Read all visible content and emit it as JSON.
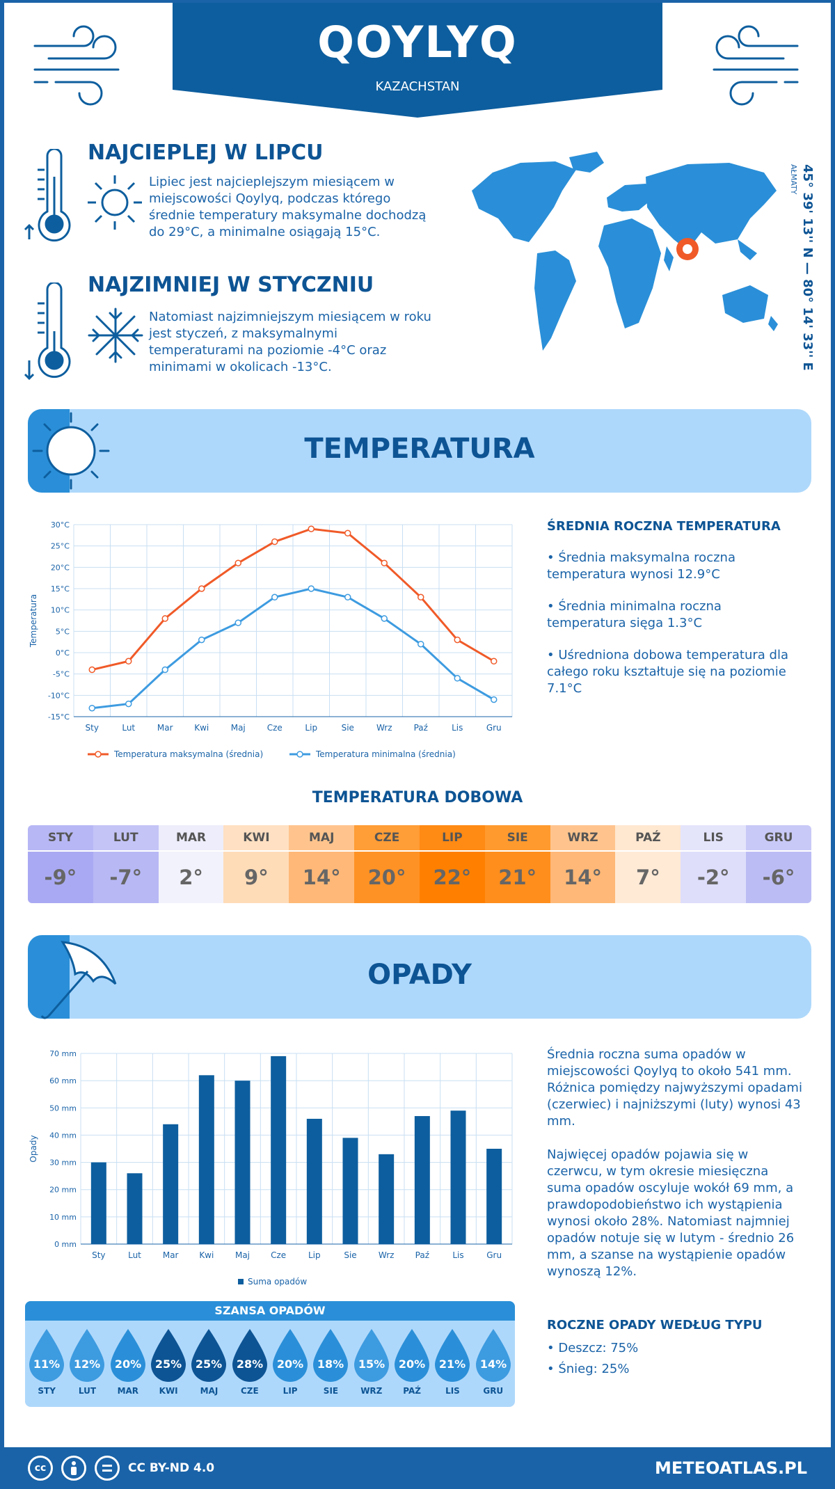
{
  "header": {
    "city": "QOYLYQ",
    "country": "KAZACHSTAN"
  },
  "hottest": {
    "title": "NAJCIEPLEJ W LIPCU",
    "text": "Lipiec jest najcieplejszym miesiącem w miejscowości Qoylyq, podczas którego średnie temperatury maksymalne dochodzą do 29°C, a minimalne osiągają 15°C."
  },
  "coldest": {
    "title": "NAJZIMNIEJ W STYCZNIU",
    "text": "Natomiast najzimniejszym miesiącem w roku jest styczeń, z maksymalnymi temperaturami na poziomie -4°C oraz minimami w okolicach -13°C."
  },
  "location": {
    "coords": "45° 39' 13'' N — 80° 14' 33'' E",
    "region": "AŁMATY"
  },
  "temperature": {
    "section_title": "TEMPERATURA",
    "summary_title": "ŚREDNIA ROCZNA TEMPERATURA",
    "bullets": [
      "• Średnia maksymalna roczna temperatura wynosi 12.9°C",
      "• Średnia minimalna roczna temperatura sięga 1.3°C",
      "• Uśredniona dobowa temperatura dla całego roku kształtuje się na poziomie 7.1°C"
    ]
  },
  "daily": {
    "title": "TEMPERATURA DOBOWA",
    "months": [
      "STY",
      "LUT",
      "MAR",
      "KWI",
      "MAJ",
      "CZE",
      "LIP",
      "SIE",
      "WRZ",
      "PAŹ",
      "LIS",
      "GRU"
    ],
    "values": [
      "-9°",
      "-7°",
      "2°",
      "9°",
      "14°",
      "20°",
      "22°",
      "21°",
      "14°",
      "7°",
      "-2°",
      "-6°"
    ],
    "head_colors": [
      "#b7b7f5",
      "#c4c4f7",
      "#ededfb",
      "#ffe0c2",
      "#ffc48d",
      "#ff9d36",
      "#ff8a14",
      "#ff9a2e",
      "#ffc48d",
      "#ffe7d0",
      "#e4e4fb",
      "#c9c9f7"
    ],
    "value_colors": [
      "#a9a9f3",
      "#b8b8f5",
      "#f2f2fc",
      "#ffdcb8",
      "#ffb877",
      "#ff9225",
      "#ff8000",
      "#ff8e1c",
      "#ffb877",
      "#ffead6",
      "#dedefb",
      "#bcbcf5"
    ]
  },
  "precip": {
    "section_title": "OPADY",
    "text1": "Średnia roczna suma opadów w miejscowości Qoylyq to około 541 mm. Różnica pomiędzy najwyższymi opadami (czerwiec) i najniższymi (luty) wynosi 43 mm.",
    "text2": "Najwięcej opadów pojawia się w czerwcu, w tym okresie miesięczna suma opadów oscyluje wokół 69 mm, a prawdopodobieństwo ich wystąpienia wynosi około 28%. Natomiast najmniej opadów notuje się w lutym - średnio 26 mm, a szanse na wystąpienie opadów wynoszą 12%.",
    "type_title": "ROCZNE OPADY WEDŁUG TYPU",
    "types": [
      "• Deszcz: 75%",
      "• Śnieg: 25%"
    ]
  },
  "chance": {
    "title": "SZANSA OPADÓW",
    "months": [
      "STY",
      "LUT",
      "MAR",
      "KWI",
      "MAJ",
      "CZE",
      "LIP",
      "SIE",
      "WRZ",
      "PAŹ",
      "LIS",
      "GRU"
    ],
    "values": [
      "11%",
      "12%",
      "20%",
      "25%",
      "25%",
      "28%",
      "20%",
      "18%",
      "15%",
      "20%",
      "21%",
      "14%"
    ],
    "colors": [
      "#3d9be0",
      "#3d9be0",
      "#2a8fd8",
      "#0d5494",
      "#0d5494",
      "#0d5494",
      "#2a8fd8",
      "#2a8fd8",
      "#3d9be0",
      "#2a8fd8",
      "#2a8fd8",
      "#3d9be0"
    ]
  },
  "chart_data": [
    {
      "type": "line",
      "categories": [
        "Sty",
        "Lut",
        "Mar",
        "Kwi",
        "Maj",
        "Cze",
        "Lip",
        "Sie",
        "Wrz",
        "Paź",
        "Lis",
        "Gru"
      ],
      "series": [
        {
          "name": "Temperatura maksymalna (średnia)",
          "values": [
            -4,
            -2,
            8,
            15,
            21,
            26,
            29,
            28,
            21,
            13,
            3,
            -2
          ],
          "color": "#f05a28"
        },
        {
          "name": "Temperatura minimalna (średnia)",
          "values": [
            -13,
            -12,
            -4,
            3,
            7,
            13,
            15,
            13,
            8,
            2,
            -6,
            -11
          ],
          "color": "#3d9be0"
        }
      ],
      "ylabel": "Temperatura",
      "ylim": [
        -15,
        30
      ],
      "yticks": [
        "-15°C",
        "-10°C",
        "-5°C",
        "0°C",
        "5°C",
        "10°C",
        "15°C",
        "20°C",
        "25°C",
        "30°C"
      ],
      "grid": true,
      "legend": "bottom"
    },
    {
      "type": "bar",
      "categories": [
        "Sty",
        "Lut",
        "Mar",
        "Kwi",
        "Maj",
        "Cze",
        "Lip",
        "Sie",
        "Wrz",
        "Paź",
        "Lis",
        "Gru"
      ],
      "series": [
        {
          "name": "Suma opadów",
          "values": [
            30,
            26,
            44,
            62,
            60,
            69,
            46,
            39,
            33,
            47,
            49,
            35
          ],
          "color": "#0d5e9e"
        }
      ],
      "ylabel": "Opady",
      "ylim": [
        0,
        70
      ],
      "yticks": [
        "0 mm",
        "10 mm",
        "20 mm",
        "30 mm",
        "40 mm",
        "50 mm",
        "60 mm",
        "70 mm"
      ],
      "grid": true,
      "legend": "bottom"
    }
  ],
  "footer": {
    "license": "CC BY-ND 4.0",
    "site": "METEOATLAS.PL",
    "icons": [
      "cc",
      "by",
      "nd"
    ]
  }
}
